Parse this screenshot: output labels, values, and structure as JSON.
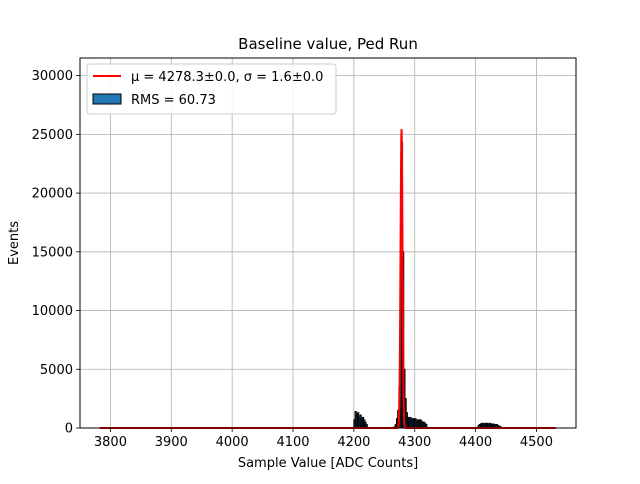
{
  "chart_data": {
    "type": "bar",
    "title": "Baseline value, Ped Run",
    "xlabel": "Sample Value [ADC Counts]",
    "ylabel": "Events",
    "xlim": [
      3750,
      4565
    ],
    "ylim": [
      0,
      31500
    ],
    "xticks": [
      3800,
      3900,
      4000,
      4100,
      4200,
      4300,
      4400,
      4500
    ],
    "yticks": [
      0,
      5000,
      10000,
      15000,
      20000,
      25000,
      30000
    ],
    "grid": true,
    "legend_position": "top-left",
    "legend": [
      {
        "label": "μ = 4278.3±0.0, σ = 1.6±0.0",
        "kind": "line",
        "color": "#ff0000"
      },
      {
        "label": "RMS = 60.73",
        "kind": "patch",
        "color": "#1f77b4"
      }
    ],
    "histogram": {
      "name": "RMS = 60.73",
      "bin_width": 2,
      "bins": [
        {
          "x": 4200,
          "y": 700
        },
        {
          "x": 4202,
          "y": 1400
        },
        {
          "x": 4204,
          "y": 1100
        },
        {
          "x": 4206,
          "y": 1300
        },
        {
          "x": 4208,
          "y": 900
        },
        {
          "x": 4210,
          "y": 1100
        },
        {
          "x": 4212,
          "y": 800
        },
        {
          "x": 4214,
          "y": 900
        },
        {
          "x": 4216,
          "y": 700
        },
        {
          "x": 4218,
          "y": 500
        },
        {
          "x": 4220,
          "y": 300
        },
        {
          "x": 4266,
          "y": 100
        },
        {
          "x": 4268,
          "y": 300
        },
        {
          "x": 4270,
          "y": 800
        },
        {
          "x": 4272,
          "y": 1500
        },
        {
          "x": 4274,
          "y": 3500
        },
        {
          "x": 4276,
          "y": 8000
        },
        {
          "x": 4278,
          "y": 24300
        },
        {
          "x": 4280,
          "y": 15000
        },
        {
          "x": 4282,
          "y": 5000
        },
        {
          "x": 4284,
          "y": 2500
        },
        {
          "x": 4286,
          "y": 1300
        },
        {
          "x": 4288,
          "y": 900
        },
        {
          "x": 4290,
          "y": 800
        },
        {
          "x": 4292,
          "y": 900
        },
        {
          "x": 4294,
          "y": 700
        },
        {
          "x": 4296,
          "y": 800
        },
        {
          "x": 4298,
          "y": 700
        },
        {
          "x": 4300,
          "y": 800
        },
        {
          "x": 4302,
          "y": 600
        },
        {
          "x": 4304,
          "y": 700
        },
        {
          "x": 4306,
          "y": 600
        },
        {
          "x": 4308,
          "y": 700
        },
        {
          "x": 4310,
          "y": 600
        },
        {
          "x": 4312,
          "y": 500
        },
        {
          "x": 4314,
          "y": 500
        },
        {
          "x": 4316,
          "y": 400
        },
        {
          "x": 4318,
          "y": 300
        },
        {
          "x": 4404,
          "y": 200
        },
        {
          "x": 4406,
          "y": 300
        },
        {
          "x": 4408,
          "y": 350
        },
        {
          "x": 4410,
          "y": 400
        },
        {
          "x": 4412,
          "y": 300
        },
        {
          "x": 4414,
          "y": 400
        },
        {
          "x": 4416,
          "y": 350
        },
        {
          "x": 4418,
          "y": 400
        },
        {
          "x": 4420,
          "y": 300
        },
        {
          "x": 4422,
          "y": 400
        },
        {
          "x": 4424,
          "y": 350
        },
        {
          "x": 4426,
          "y": 300
        },
        {
          "x": 4428,
          "y": 350
        },
        {
          "x": 4430,
          "y": 300
        },
        {
          "x": 4432,
          "y": 250
        },
        {
          "x": 4434,
          "y": 300
        },
        {
          "x": 4436,
          "y": 200
        },
        {
          "x": 4438,
          "y": 150
        },
        {
          "x": 4440,
          "y": 100
        }
      ]
    },
    "fit": {
      "name": "μ = 4278.3±0.0, σ = 1.6±0.0",
      "mu": 4278.3,
      "sigma": 1.6,
      "amplitude": 25500,
      "x_range": [
        3782,
        4532
      ]
    }
  }
}
